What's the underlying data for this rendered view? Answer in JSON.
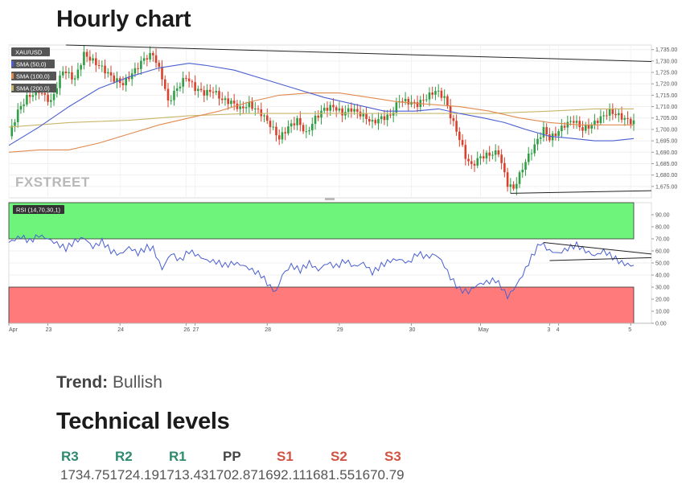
{
  "page": {
    "title": "Hourly chart",
    "trend_label": "Trend:",
    "trend_value": "Bullish",
    "levels_title": "Technical levels"
  },
  "levels": {
    "labels": [
      "R3",
      "R2",
      "R1",
      "PP",
      "S1",
      "S2",
      "S3"
    ],
    "values": [
      "1734.75",
      "1724.19",
      "1713.43",
      "1702.87",
      "1692.11",
      "1681.55",
      "1670.79"
    ],
    "values_line": "1734.751724.191713.431702.871692.111681.551670.79"
  },
  "chart_data": [
    {
      "type": "candlestick",
      "symbol_label": "XAU/USD",
      "legend": [
        {
          "name": "SMA (50,0)",
          "color": "#4a5fd0"
        },
        {
          "name": "SMA (100,0)",
          "color": "#e08a4e"
        },
        {
          "name": "SMA (200,0)",
          "color": "#c9b66a"
        }
      ],
      "colors": {
        "up": "#2f9e44",
        "down": "#d8412c",
        "trendline": "#222222"
      },
      "watermark": "FXSTREET",
      "ylim": [
        1670,
        1737
      ],
      "yticks": [
        "1,735.00",
        "1,730.00",
        "1,725.00",
        "1,720.00",
        "1,715.00",
        "1,710.00",
        "1,705.00",
        "1,700.00",
        "1,695.00",
        "1,690.00",
        "1,685.00",
        "1,680.00",
        "1,675.00"
      ],
      "ytick_values": [
        1735,
        1730,
        1725,
        1720,
        1715,
        1710,
        1705,
        1700,
        1695,
        1690,
        1685,
        1680,
        1675
      ],
      "xticks": [
        {
          "label": "Apr",
          "t": 0
        },
        {
          "label": "23",
          "t": 13
        },
        {
          "label": "24",
          "t": 37
        },
        {
          "label": "26",
          "t": 59
        },
        {
          "label": "27",
          "t": 62
        },
        {
          "label": "28",
          "t": 86
        },
        {
          "label": "29",
          "t": 110
        },
        {
          "label": "30",
          "t": 134
        },
        {
          "label": "May",
          "t": 157
        },
        {
          "label": "3",
          "t": 180
        },
        {
          "label": "4",
          "t": 183
        },
        {
          "label": "5",
          "t": 207
        }
      ],
      "close_path": [
        [
          0,
          1697
        ],
        [
          3,
          1708
        ],
        [
          6,
          1714
        ],
        [
          10,
          1717
        ],
        [
          14,
          1712
        ],
        [
          18,
          1726
        ],
        [
          22,
          1722
        ],
        [
          25,
          1733
        ],
        [
          28,
          1730
        ],
        [
          31,
          1727
        ],
        [
          35,
          1722
        ],
        [
          38,
          1720
        ],
        [
          42,
          1726
        ],
        [
          45,
          1731
        ],
        [
          48,
          1733
        ],
        [
          51,
          1723
        ],
        [
          53,
          1712
        ],
        [
          56,
          1718
        ],
        [
          59,
          1723
        ],
        [
          62,
          1718
        ],
        [
          65,
          1716
        ],
        [
          68,
          1717
        ],
        [
          71,
          1713
        ],
        [
          74,
          1712
        ],
        [
          77,
          1709
        ],
        [
          80,
          1711
        ],
        [
          84,
          1707
        ],
        [
          87,
          1702
        ],
        [
          90,
          1696
        ],
        [
          93,
          1701
        ],
        [
          96,
          1704
        ],
        [
          99,
          1698
        ],
        [
          102,
          1705
        ],
        [
          105,
          1709
        ],
        [
          108,
          1710
        ],
        [
          111,
          1707
        ],
        [
          114,
          1709
        ],
        [
          118,
          1706
        ],
        [
          121,
          1703
        ],
        [
          124,
          1705
        ],
        [
          127,
          1706
        ],
        [
          130,
          1713
        ],
        [
          133,
          1712
        ],
        [
          136,
          1711
        ],
        [
          139,
          1714
        ],
        [
          142,
          1717
        ],
        [
          145,
          1714
        ],
        [
          147,
          1706
        ],
        [
          150,
          1696
        ],
        [
          152,
          1688
        ],
        [
          154,
          1684
        ],
        [
          157,
          1688
        ],
        [
          160,
          1689
        ],
        [
          163,
          1690
        ],
        [
          164,
          1685
        ],
        [
          166,
          1676
        ],
        [
          168,
          1674
        ],
        [
          170,
          1680
        ],
        [
          172,
          1686
        ],
        [
          175,
          1693
        ],
        [
          178,
          1700
        ],
        [
          180,
          1696
        ],
        [
          182,
          1698
        ],
        [
          185,
          1702
        ],
        [
          188,
          1704
        ],
        [
          191,
          1700
        ],
        [
          194,
          1702
        ],
        [
          197,
          1705
        ],
        [
          200,
          1708
        ],
        [
          203,
          1706
        ],
        [
          206,
          1704
        ],
        [
          208,
          1703
        ]
      ],
      "sma50": [
        [
          0,
          1693
        ],
        [
          10,
          1701
        ],
        [
          20,
          1710
        ],
        [
          30,
          1718
        ],
        [
          40,
          1723
        ],
        [
          50,
          1727
        ],
        [
          60,
          1729
        ],
        [
          66,
          1728
        ],
        [
          75,
          1726
        ],
        [
          85,
          1722
        ],
        [
          95,
          1718
        ],
        [
          105,
          1714
        ],
        [
          115,
          1711
        ],
        [
          125,
          1708
        ],
        [
          135,
          1708
        ],
        [
          143,
          1709
        ],
        [
          150,
          1707
        ],
        [
          158,
          1705
        ],
        [
          165,
          1703
        ],
        [
          172,
          1700
        ],
        [
          180,
          1697
        ],
        [
          188,
          1696
        ],
        [
          195,
          1695
        ],
        [
          201,
          1695
        ],
        [
          208,
          1696
        ]
      ],
      "sma100": [
        [
          0,
          1690
        ],
        [
          10,
          1691
        ],
        [
          20,
          1691
        ],
        [
          30,
          1694
        ],
        [
          40,
          1698
        ],
        [
          50,
          1702
        ],
        [
          60,
          1705
        ],
        [
          70,
          1708
        ],
        [
          80,
          1712
        ],
        [
          90,
          1715
        ],
        [
          100,
          1716
        ],
        [
          110,
          1716
        ],
        [
          120,
          1714
        ],
        [
          130,
          1712
        ],
        [
          140,
          1711
        ],
        [
          150,
          1710
        ],
        [
          160,
          1708
        ],
        [
          170,
          1705
        ],
        [
          180,
          1703
        ],
        [
          190,
          1702
        ],
        [
          200,
          1702
        ],
        [
          208,
          1702
        ]
      ],
      "sma200": [
        [
          0,
          1701
        ],
        [
          20,
          1703
        ],
        [
          40,
          1704
        ],
        [
          60,
          1706
        ],
        [
          80,
          1707
        ],
        [
          100,
          1707
        ],
        [
          120,
          1707
        ],
        [
          140,
          1707
        ],
        [
          160,
          1707
        ],
        [
          180,
          1708
        ],
        [
          195,
          1709
        ],
        [
          208,
          1709
        ]
      ],
      "trendlines": [
        {
          "from": [
            19,
            1737
          ],
          "to": [
            208,
            1730
          ]
        },
        {
          "from": [
            167,
            1672
          ],
          "to": [
            208,
            1673
          ]
        }
      ]
    },
    {
      "type": "line",
      "series_label": "RSI (14,70,30,1)",
      "ylim": [
        0,
        100
      ],
      "overbought": 70,
      "oversold": 30,
      "colors": {
        "line": "#4a5fd0",
        "overbought_zone": "#6ef47a",
        "oversold_zone": "#ff7a7a"
      },
      "yticks": [
        "90.00",
        "80.00",
        "70.00",
        "60.00",
        "50.00",
        "40.00",
        "30.00",
        "20.00",
        "10.00",
        "0.00"
      ],
      "ytick_values": [
        90,
        80,
        70,
        60,
        50,
        40,
        30,
        20,
        10,
        0
      ],
      "values": [
        [
          0,
          67
        ],
        [
          4,
          72
        ],
        [
          7,
          68
        ],
        [
          10,
          73
        ],
        [
          13,
          70
        ],
        [
          16,
          66
        ],
        [
          19,
          62
        ],
        [
          22,
          68
        ],
        [
          25,
          71
        ],
        [
          28,
          63
        ],
        [
          31,
          68
        ],
        [
          34,
          60
        ],
        [
          37,
          57
        ],
        [
          40,
          63
        ],
        [
          43,
          58
        ],
        [
          46,
          63
        ],
        [
          48,
          62
        ],
        [
          51,
          45
        ],
        [
          54,
          58
        ],
        [
          57,
          52
        ],
        [
          60,
          60
        ],
        [
          63,
          56
        ],
        [
          66,
          52
        ],
        [
          69,
          51
        ],
        [
          72,
          48
        ],
        [
          75,
          50
        ],
        [
          78,
          48
        ],
        [
          81,
          44
        ],
        [
          84,
          40
        ],
        [
          87,
          30
        ],
        [
          89,
          26
        ],
        [
          91,
          40
        ],
        [
          94,
          48
        ],
        [
          97,
          44
        ],
        [
          100,
          50
        ],
        [
          103,
          44
        ],
        [
          106,
          50
        ],
        [
          109,
          47
        ],
        [
          112,
          52
        ],
        [
          115,
          47
        ],
        [
          118,
          50
        ],
        [
          121,
          42
        ],
        [
          124,
          48
        ],
        [
          127,
          52
        ],
        [
          130,
          53
        ],
        [
          133,
          50
        ],
        [
          136,
          58
        ],
        [
          139,
          55
        ],
        [
          142,
          57
        ],
        [
          144,
          52
        ],
        [
          147,
          38
        ],
        [
          150,
          28
        ],
        [
          153,
          26
        ],
        [
          156,
          32
        ],
        [
          159,
          34
        ],
        [
          162,
          36
        ],
        [
          164,
          30
        ],
        [
          166,
          22
        ],
        [
          168,
          28
        ],
        [
          171,
          40
        ],
        [
          174,
          55
        ],
        [
          177,
          67
        ],
        [
          180,
          60
        ],
        [
          183,
          58
        ],
        [
          186,
          62
        ],
        [
          189,
          65
        ],
        [
          192,
          60
        ],
        [
          195,
          56
        ],
        [
          198,
          60
        ],
        [
          201,
          55
        ],
        [
          204,
          50
        ],
        [
          207,
          48
        ]
      ],
      "trendlines": [
        {
          "from": [
            178,
            67
          ],
          "to": [
            208,
            59
          ]
        },
        {
          "from": [
            180,
            52
          ],
          "to": [
            208,
            54
          ]
        }
      ]
    }
  ]
}
